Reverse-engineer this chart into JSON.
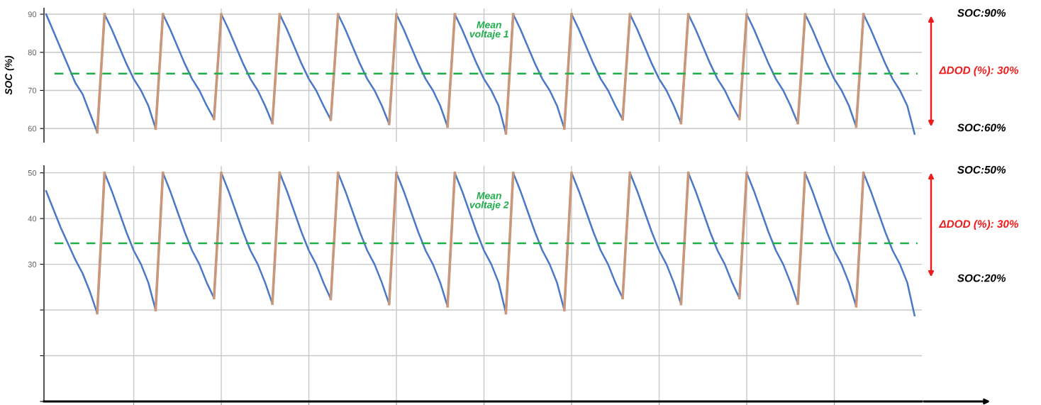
{
  "chart_data": [
    {
      "type": "line",
      "ylabel": "SOC (%)",
      "tick_labels": "y",
      "grid": true,
      "line_style": "solid",
      "marker": "none",
      "categories": [
        null,
        null,
        null,
        null,
        null,
        null,
        null,
        null,
        null,
        null,
        null,
        null,
        null,
        null,
        null,
        null,
        null,
        null,
        null,
        null,
        null,
        null,
        null,
        null,
        null,
        null,
        null,
        null,
        null,
        null,
        null,
        null,
        null,
        null,
        null,
        null,
        null,
        null,
        null,
        null,
        null,
        null,
        null,
        null,
        null,
        null,
        null,
        null,
        null,
        null,
        null,
        null,
        null,
        null,
        null,
        null,
        null,
        null,
        null,
        null,
        null,
        null,
        null,
        null,
        null,
        null,
        null,
        null,
        null,
        null,
        null,
        null,
        null,
        null,
        null,
        null,
        null,
        null,
        null,
        null,
        null,
        null,
        null,
        null,
        null,
        null,
        null,
        null,
        null,
        null,
        null,
        null,
        null,
        null,
        null,
        null,
        null,
        null,
        null,
        null,
        null,
        null,
        null,
        null,
        null,
        null,
        null,
        null,
        null,
        null,
        null,
        null,
        null,
        null,
        null,
        null,
        null,
        null,
        null,
        null
      ],
      "ylim": [
        56.5,
        91.5
      ],
      "yticks": [
        60,
        70,
        80,
        90
      ],
      "series": [
        {
          "color": "#c9977a",
          "values": [
            null,
            null,
            null,
            null,
            null,
            null,
            null,
            59,
            90,
            null,
            null,
            null,
            null,
            null,
            null,
            60,
            90,
            null,
            null,
            null,
            null,
            null,
            null,
            62.5,
            90,
            null,
            null,
            null,
            null,
            null,
            null,
            61.4,
            90,
            null,
            null,
            null,
            null,
            null,
            null,
            62.3,
            90,
            null,
            null,
            null,
            null,
            null,
            null,
            61.2,
            90,
            null,
            null,
            null,
            null,
            null,
            null,
            60.5,
            90,
            null,
            null,
            null,
            null,
            null,
            null,
            58.7,
            90,
            null,
            null,
            null,
            null,
            null,
            null,
            60,
            90,
            null,
            null,
            null,
            null,
            null,
            null,
            62.4,
            90,
            null,
            null,
            null,
            null,
            null,
            null,
            61.4,
            90,
            null,
            null,
            null,
            null,
            null,
            null,
            62.5,
            90,
            null,
            null,
            null,
            null,
            null,
            null,
            61.4,
            90,
            null,
            null,
            null,
            null,
            null,
            null,
            60.5,
            90,
            null,
            null,
            null,
            null,
            null,
            null,
            null
          ]
        },
        {
          "color": "#4a78c8",
          "values": [
            90,
            85.5,
            81,
            76.5,
            72,
            69,
            64,
            59,
            90,
            86,
            81.5,
            77,
            73,
            70,
            66,
            60,
            90,
            86,
            81.5,
            77,
            73,
            70,
            66,
            62.5,
            90,
            86,
            81.5,
            77,
            73,
            70,
            66,
            61.4,
            90,
            86,
            81.5,
            77,
            73,
            70,
            66,
            62.3,
            90,
            86,
            81.5,
            77,
            73,
            70,
            66,
            61.2,
            90,
            86,
            81.5,
            77,
            73,
            70,
            66,
            60.5,
            90,
            86,
            81.5,
            77,
            73,
            70,
            66,
            58.7,
            90,
            86,
            81.5,
            77,
            73,
            70,
            66,
            60,
            90,
            86,
            81.5,
            77,
            73,
            70,
            66,
            62.4,
            90,
            86,
            81.5,
            77,
            73,
            70,
            66,
            61.4,
            90,
            86,
            81.5,
            77,
            73,
            70,
            66,
            62.5,
            90,
            86,
            81.5,
            77,
            73,
            70,
            66,
            61.4,
            90,
            86,
            81.5,
            77,
            73,
            70,
            66,
            60.5,
            90,
            86,
            81.5,
            77,
            73,
            70,
            66,
            58.6
          ]
        }
      ],
      "ref_lines": [
        {
          "axis": "y",
          "value": 74.4,
          "label": "Mean voltaje 1",
          "color": "#1fae4a",
          "line_style": "dashed"
        }
      ],
      "annotations": [
        "SOC:90%",
        "ΔDOD (%): 30%",
        "SOC:60%"
      ]
    },
    {
      "type": "line",
      "tick_labels": "y",
      "grid": true,
      "line_style": "solid",
      "marker": "none",
      "categories": [
        null,
        null,
        null,
        null,
        null,
        null,
        null,
        null,
        null,
        null,
        null,
        null,
        null,
        null,
        null,
        null,
        null,
        null,
        null,
        null,
        null,
        null,
        null,
        null,
        null,
        null,
        null,
        null,
        null,
        null,
        null,
        null,
        null,
        null,
        null,
        null,
        null,
        null,
        null,
        null,
        null,
        null,
        null,
        null,
        null,
        null,
        null,
        null,
        null,
        null,
        null,
        null,
        null,
        null,
        null,
        null,
        null,
        null,
        null,
        null,
        null,
        null,
        null,
        null,
        null,
        null,
        null,
        null,
        null,
        null,
        null,
        null,
        null,
        null,
        null,
        null,
        null,
        null,
        null,
        null,
        null,
        null,
        null,
        null,
        null,
        null,
        null,
        null,
        null,
        null,
        null,
        null,
        null,
        null,
        null,
        null,
        null,
        null,
        null,
        null,
        null,
        null,
        null,
        null,
        null,
        null,
        null,
        null,
        null,
        null,
        null,
        null,
        null,
        null,
        null,
        null,
        null,
        null,
        null,
        null
      ],
      "ylim": [
        0,
        51.5
      ],
      "yticks": [
        {
          "value": 0,
          "label": null
        },
        {
          "value": 10,
          "label": null
        },
        {
          "value": 20,
          "label": null
        },
        30,
        40,
        50
      ],
      "series": [
        {
          "color": "#c9977a",
          "values": [
            null,
            null,
            null,
            null,
            null,
            null,
            null,
            19.3,
            50,
            null,
            null,
            null,
            null,
            null,
            null,
            20,
            50,
            null,
            null,
            null,
            null,
            null,
            null,
            22.6,
            50,
            null,
            null,
            null,
            null,
            null,
            null,
            21.4,
            50,
            null,
            null,
            null,
            null,
            null,
            null,
            22.4,
            50,
            null,
            null,
            null,
            null,
            null,
            null,
            21.3,
            50,
            null,
            null,
            null,
            null,
            null,
            null,
            20.8,
            50,
            null,
            null,
            null,
            null,
            null,
            null,
            19.3,
            50,
            null,
            null,
            null,
            null,
            null,
            null,
            20,
            50,
            null,
            null,
            null,
            null,
            null,
            null,
            22.6,
            50,
            null,
            null,
            null,
            null,
            null,
            null,
            21.3,
            50,
            null,
            null,
            null,
            null,
            null,
            null,
            22.6,
            50,
            null,
            null,
            null,
            null,
            null,
            null,
            21.4,
            50,
            null,
            null,
            null,
            null,
            null,
            null,
            20.8,
            50,
            null,
            null,
            null,
            null,
            null,
            null,
            null
          ]
        },
        {
          "color": "#4a78c8",
          "values": [
            46,
            42,
            38,
            34.5,
            31,
            28,
            24,
            19.3,
            50,
            46,
            41.5,
            37,
            33,
            30,
            26,
            20,
            50,
            46,
            41.5,
            37,
            33,
            30,
            26,
            22.6,
            50,
            46,
            41.5,
            37,
            33,
            30,
            26,
            21.4,
            50,
            46,
            41.5,
            37,
            33,
            30,
            26,
            22.4,
            50,
            46,
            41.5,
            37,
            33,
            30,
            26,
            21.3,
            50,
            46,
            41.5,
            37,
            33,
            30,
            26,
            20.8,
            50,
            46,
            41.5,
            37,
            33,
            30,
            26,
            19.3,
            50,
            46,
            41.5,
            37,
            33,
            30,
            26,
            20,
            50,
            46,
            41.5,
            37,
            33,
            30,
            26,
            22.6,
            50,
            46,
            41.5,
            37,
            33,
            30,
            26,
            21.3,
            50,
            46,
            41.5,
            37,
            33,
            30,
            26,
            22.6,
            50,
            46,
            41.5,
            37,
            33,
            30,
            26,
            21.4,
            50,
            46,
            41.5,
            37,
            33,
            30,
            26,
            20.8,
            50,
            46,
            41.5,
            37,
            33,
            30,
            26,
            18.8
          ]
        }
      ],
      "ref_lines": [
        {
          "axis": "y",
          "value": 34.6,
          "label": "Mean voltaje 2",
          "color": "#1fae4a",
          "line_style": "dashed"
        }
      ],
      "annotations": [
        "SOC:50%",
        "ΔDOD (%): 30%",
        "SOC:20%"
      ]
    }
  ]
}
